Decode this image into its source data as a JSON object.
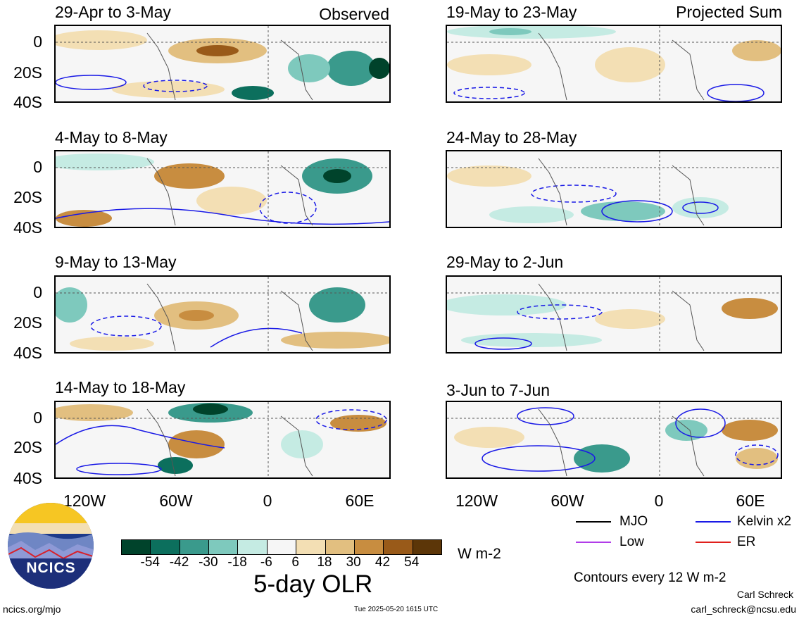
{
  "panels": [
    {
      "title": "29-Apr to 3-May",
      "tag": "Observed"
    },
    {
      "title": "4-May to 8-May",
      "tag": ""
    },
    {
      "title": "9-May to 13-May",
      "tag": ""
    },
    {
      "title": "14-May to 18-May",
      "tag": ""
    },
    {
      "title": "19-May to 23-May",
      "tag": "Projected Sum"
    },
    {
      "title": "24-May to 28-May",
      "tag": ""
    },
    {
      "title": "29-May to 2-Jun",
      "tag": ""
    },
    {
      "title": "3-Jun to 7-Jun",
      "tag": ""
    }
  ],
  "lat_labels": [
    "0",
    "20S",
    "40S"
  ],
  "lon_labels": [
    "120W",
    "60W",
    "0",
    "60E"
  ],
  "colorbar": {
    "colors": [
      "#00432b",
      "#0c6f5d",
      "#3a9a8c",
      "#7ec9bd",
      "#c5ebe3",
      "#f6f6f6",
      "#f3dfb4",
      "#e2bf80",
      "#c88d40",
      "#995a19",
      "#5c3608"
    ],
    "labels": [
      "-54",
      "-42",
      "-30",
      "-18",
      "-6",
      "6",
      "18",
      "30",
      "42",
      "54"
    ],
    "units": "W m-2",
    "title": "5-day OLR"
  },
  "legend": {
    "items": [
      {
        "label": "MJO",
        "color": "#000000"
      },
      {
        "label": "Kelvin x2",
        "color": "#1a1ae6"
      },
      {
        "label": "Low",
        "color": "#b13ce8"
      },
      {
        "label": "ER",
        "color": "#e0201c"
      }
    ],
    "contour_note": "Contours every 12 W m-2"
  },
  "logo": {
    "text": "NCICS"
  },
  "footer": {
    "url": "ncics.org/mjo",
    "timestamp": "Tue 2025-05-20 1615 UTC",
    "author": "Carl Schreck",
    "email": "carl_schreck@ncsu.edu"
  }
}
